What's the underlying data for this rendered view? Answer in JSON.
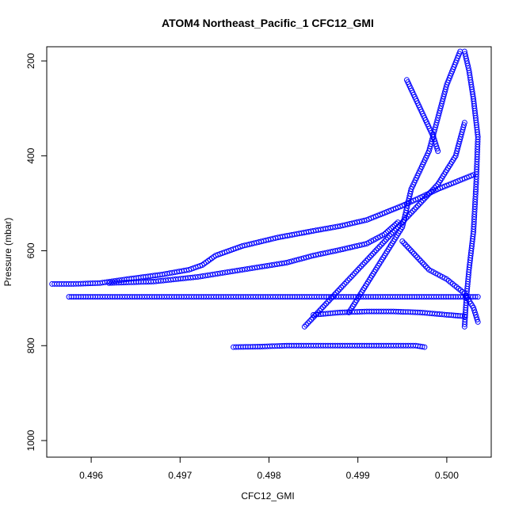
{
  "chart_data": {
    "type": "scatter",
    "title": "ATOM4 Northeast_Pacific_1 CFC12_GMI",
    "xlabel": "CFC12_GMI",
    "ylabel": "Pressure (mbar)",
    "xlim": [
      0.4955,
      0.5005
    ],
    "ylim": [
      1035,
      170
    ],
    "y_reversed": true,
    "x_ticks": [
      "0.496",
      "0.497",
      "0.498",
      "0.499",
      "0.500"
    ],
    "x_tick_values": [
      0.496,
      0.497,
      0.498,
      0.499,
      0.5
    ],
    "y_ticks": [
      "200",
      "400",
      "600",
      "800",
      "1000"
    ],
    "y_tick_values": [
      200,
      400,
      600,
      800,
      1000
    ],
    "marker": "open-circle",
    "color": "#0000ff",
    "grid": false,
    "legend": "none",
    "series": [
      {
        "x": [
          0.49556,
          0.4958,
          0.4961,
          0.4964,
          0.4968,
          0.4971,
          0.49725,
          0.4974,
          0.4977,
          0.4981,
          0.4985,
          0.4988,
          0.4991,
          0.4993,
          0.4995,
          0.4997,
          0.4999,
          0.5001,
          0.5003
        ],
        "y": [
          670,
          670,
          668,
          660,
          650,
          640,
          630,
          610,
          590,
          572,
          558,
          548,
          535,
          520,
          505,
          488,
          470,
          455,
          440
        ]
      },
      {
        "x": [
          0.49575,
          0.4961,
          0.4966,
          0.4971,
          0.4976,
          0.4981,
          0.4984,
          0.4987,
          0.49895,
          0.4992,
          0.4995,
          0.4998,
          0.5001,
          0.50035
        ],
        "y": [
          697,
          697,
          697,
          697,
          697,
          697,
          697,
          697,
          697,
          697,
          697,
          697,
          697,
          697
        ]
      },
      {
        "x": [
          0.4976,
          0.4979,
          0.4982,
          0.4985,
          0.4988,
          0.4991,
          0.4994,
          0.49965,
          0.49975
        ],
        "y": [
          803,
          802,
          800,
          800,
          800,
          800,
          800,
          800,
          803
        ]
      },
      {
        "x": [
          0.4962,
          0.4967,
          0.4972,
          0.4977,
          0.4982,
          0.4985,
          0.4988,
          0.4991,
          0.4993,
          0.49945
        ],
        "y": [
          668,
          665,
          655,
          640,
          625,
          610,
          598,
          585,
          565,
          540
        ]
      },
      {
        "x": [
          0.4984,
          0.4987,
          0.499,
          0.4993,
          0.4996,
          0.4999,
          0.5001,
          0.5002
        ],
        "y": [
          760,
          700,
          640,
          580,
          520,
          460,
          400,
          330
        ]
      },
      {
        "x": [
          0.4989,
          0.4991,
          0.4993,
          0.4995,
          0.4996,
          0.4998,
          0.4999,
          0.5,
          0.50015
        ],
        "y": [
          730,
          670,
          610,
          550,
          470,
          390,
          320,
          250,
          180
        ]
      },
      {
        "x": [
          0.49955,
          0.49965,
          0.49975,
          0.49985,
          0.4999
        ],
        "y": [
          240,
          280,
          320,
          360,
          390
        ]
      },
      {
        "x": [
          0.4995,
          0.49965,
          0.4998,
          0.5,
          0.5002,
          0.5003,
          0.50035
        ],
        "y": [
          580,
          610,
          640,
          660,
          690,
          720,
          750
        ]
      },
      {
        "x": [
          0.4985,
          0.4988,
          0.4991,
          0.4994,
          0.4997,
          0.5,
          0.5002
        ],
        "y": [
          735,
          730,
          728,
          728,
          730,
          735,
          738
        ]
      },
      {
        "x": [
          0.5002,
          0.50022,
          0.50025,
          0.5003,
          0.50033,
          0.50035,
          0.5003,
          0.50025,
          0.5002
        ],
        "y": [
          760,
          700,
          640,
          560,
          460,
          360,
          280,
          220,
          180
        ]
      }
    ]
  }
}
